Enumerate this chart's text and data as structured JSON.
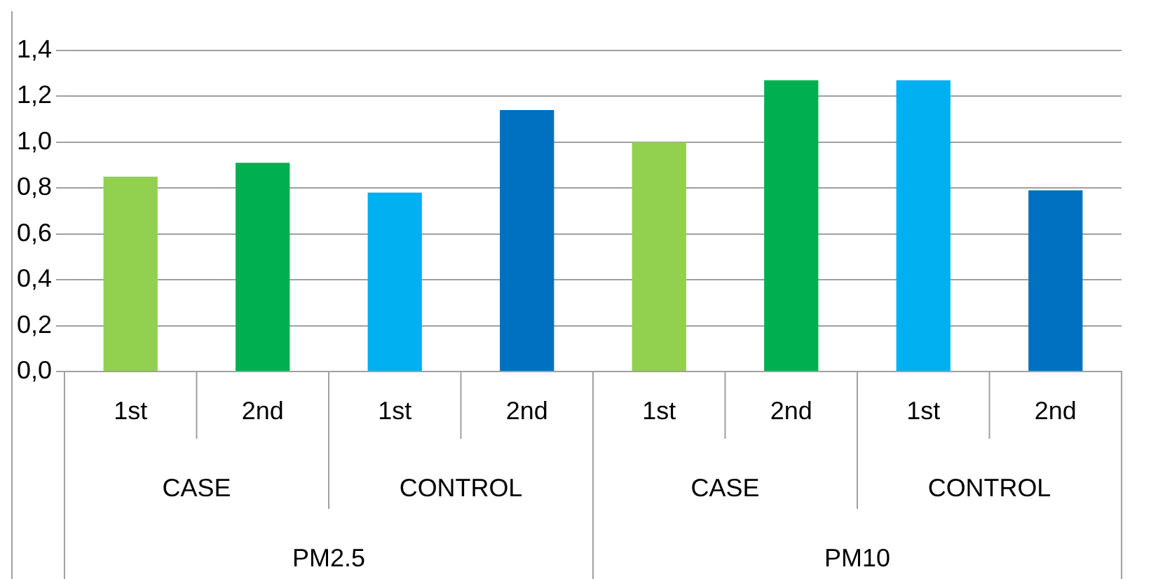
{
  "chart_data": {
    "type": "bar",
    "categories": [
      "1st",
      "2nd",
      "1st",
      "2nd",
      "1st",
      "2nd",
      "1st",
      "2nd"
    ],
    "values": [
      0.85,
      0.91,
      0.78,
      1.14,
      1.0,
      1.27,
      1.27,
      0.79
    ],
    "colors": [
      "#92d050",
      "#00b050",
      "#00b0f0",
      "#0070c0",
      "#92d050",
      "#00b050",
      "#00b0f0",
      "#0070c0"
    ],
    "ylim": [
      0,
      1.4
    ],
    "yticks": [
      {
        "value": 0,
        "label": "0,0"
      },
      {
        "value": 0.2,
        "label": "0,2"
      },
      {
        "value": 0.4,
        "label": "0,4"
      },
      {
        "value": 0.6,
        "label": "0,6"
      },
      {
        "value": 0.8,
        "label": "0,8"
      },
      {
        "value": 1.0,
        "label": "1,0"
      },
      {
        "value": 1.2,
        "label": "1,2"
      },
      {
        "value": 1.4,
        "label": "1,4"
      }
    ],
    "annotations": [
      "CASE",
      "CONTROL",
      "CASE",
      "CONTROL",
      "PM2.5",
      "PM10"
    ],
    "grid": "y",
    "legend": false
  }
}
